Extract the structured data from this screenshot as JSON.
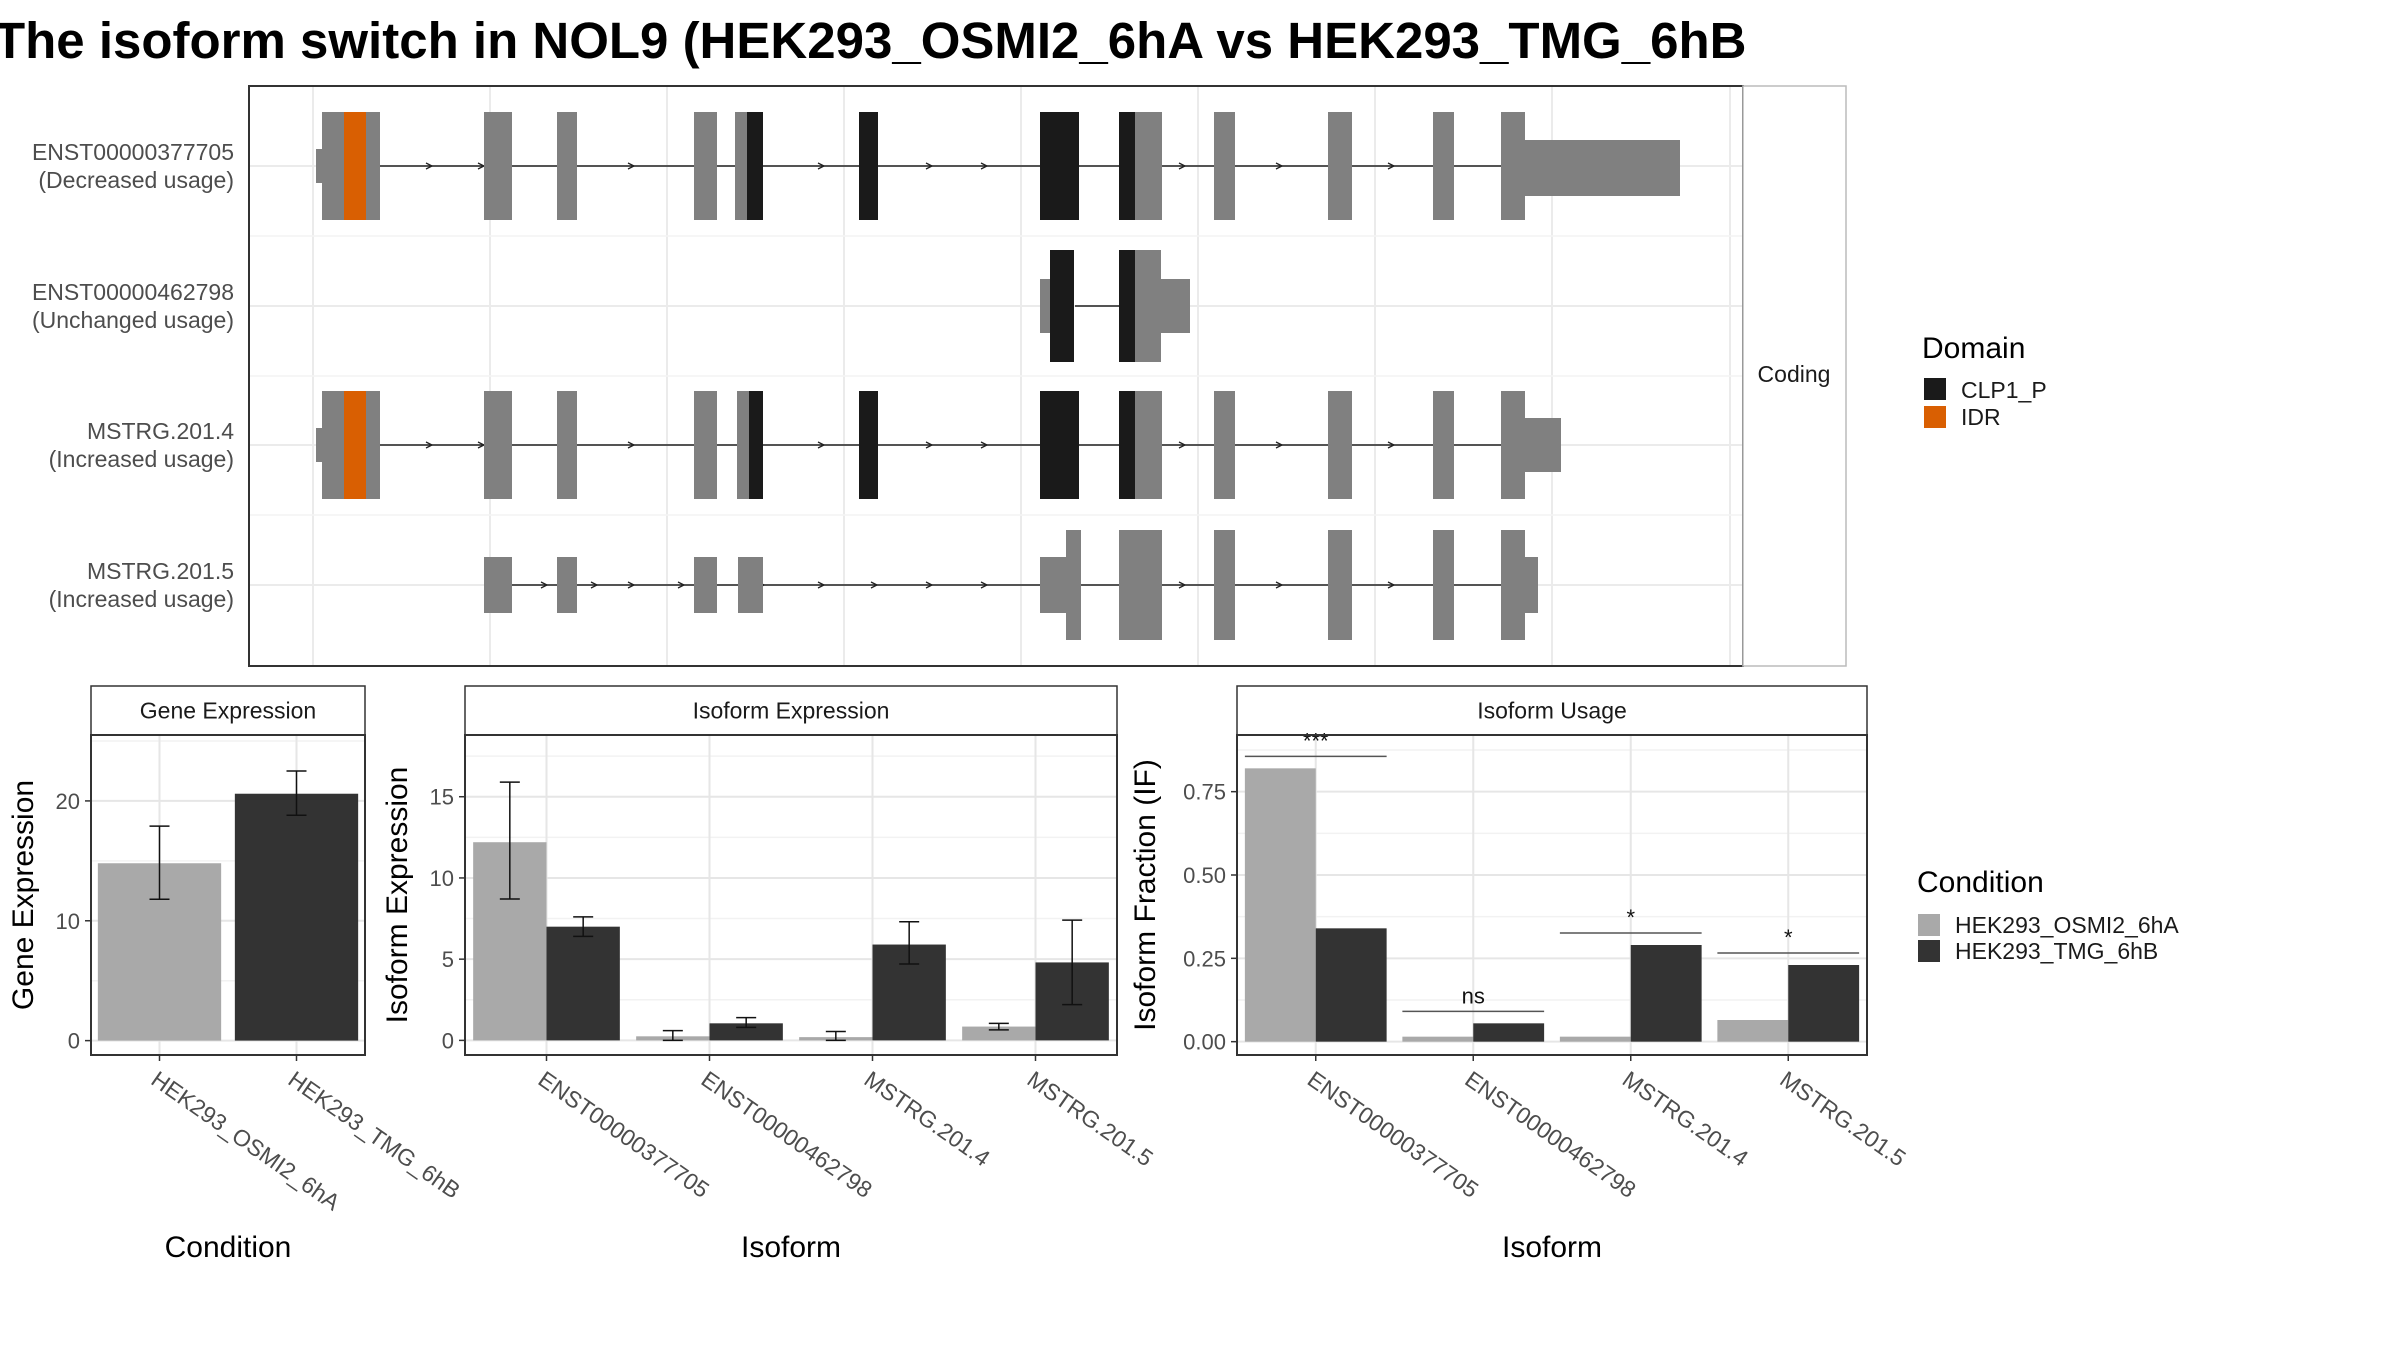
{
  "title": "The isoform switch in NOL9 (HEK293_OSMI2_6hA vs HEK293_TMG_6hB",
  "structure": {
    "facet_label": "Coding",
    "isoforms": [
      {
        "id": "ENST00000377705",
        "usage": "(Decreased usage)"
      },
      {
        "id": "ENST00000462798",
        "usage": "(Unchanged usage)"
      },
      {
        "id": "MSTRG.201.4",
        "usage": "(Increased usage)"
      },
      {
        "id": "MSTRG.201.5",
        "usage": "(Increased usage)"
      }
    ],
    "domain_legend": {
      "title": "Domain",
      "items": [
        {
          "label": "CLP1_P",
          "color": "#1a1a1a"
        },
        {
          "label": "IDR",
          "color": "#d95f02"
        }
      ]
    }
  },
  "condition_legend": {
    "title": "Condition",
    "items": [
      {
        "label": "HEK293_OSMI2_6hA",
        "color": "#a9a9a9"
      },
      {
        "label": "HEK293_TMG_6hB",
        "color": "#333333"
      }
    ]
  },
  "chart_data": [
    {
      "type": "bar",
      "title": "Gene Expression",
      "xlabel": "Condition",
      "ylabel": "Gene Expression",
      "ylim": [
        -1.2,
        25.5
      ],
      "yticks": [
        0,
        10,
        20
      ],
      "categories": [
        "HEK293_OSMI2_6hA",
        "HEK293_TMG_6hB"
      ],
      "values": [
        14.8,
        20.6
      ],
      "error_low": [
        11.8,
        18.8
      ],
      "error_high": [
        17.9,
        22.5
      ]
    },
    {
      "type": "bar",
      "title": "Isoform Expression",
      "xlabel": "Isoform",
      "ylabel": "Isoform Expression",
      "ylim": [
        -0.9,
        18.8
      ],
      "yticks": [
        0,
        5,
        10,
        15
      ],
      "categories": [
        "ENST00000377705",
        "ENST00000462798",
        "MSTRG.201.4",
        "MSTRG.201.5"
      ],
      "series": [
        {
          "name": "HEK293_OSMI2_6hA",
          "values": [
            12.2,
            0.25,
            0.2,
            0.85
          ],
          "error_low": [
            8.7,
            0.0,
            0.0,
            0.65
          ],
          "error_high": [
            15.9,
            0.6,
            0.55,
            1.05
          ]
        },
        {
          "name": "HEK293_TMG_6hB",
          "values": [
            7.0,
            1.05,
            5.9,
            4.8
          ],
          "error_low": [
            6.4,
            0.8,
            4.7,
            2.2
          ],
          "error_high": [
            7.6,
            1.4,
            7.3,
            7.4
          ]
        }
      ]
    },
    {
      "type": "bar",
      "title": "Isoform Usage",
      "xlabel": "Isoform",
      "ylabel": "Isoform Fraction (IF)",
      "ylim": [
        -0.04,
        0.92
      ],
      "yticks": [
        0,
        0.25,
        0.5,
        0.75
      ],
      "ytick_labels": [
        "0.00",
        "0.25",
        "0.50",
        "0.75"
      ],
      "categories": [
        "ENST00000377705",
        "ENST00000462798",
        "MSTRG.201.4",
        "MSTRG.201.5"
      ],
      "series": [
        {
          "name": "HEK293_OSMI2_6hA",
          "values": [
            0.82,
            0.015,
            0.015,
            0.065
          ]
        },
        {
          "name": "HEK293_TMG_6hB",
          "values": [
            0.34,
            0.055,
            0.29,
            0.23
          ]
        }
      ],
      "significance": [
        "***",
        "ns",
        "*",
        "*"
      ]
    }
  ]
}
